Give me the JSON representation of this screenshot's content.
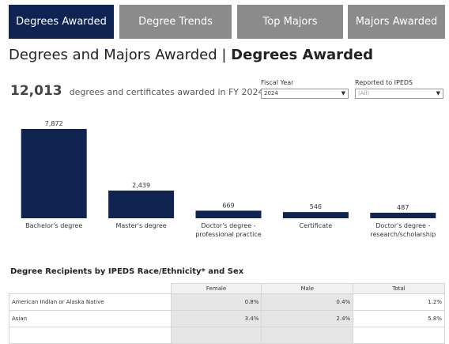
{
  "tabs": [
    {
      "label": "Degrees Awarded",
      "active": true
    },
    {
      "label": "Degree Trends",
      "active": false
    },
    {
      "label": "Top Majors",
      "active": false
    },
    {
      "label": "Majors Awarded",
      "active": false
    }
  ],
  "header": {
    "title_light": "Degrees and Majors Awarded",
    "separator": "|",
    "title_bold": "Degrees Awarded"
  },
  "summary": {
    "total": "12,013",
    "description": "degrees and certificates awarded in FY 2024"
  },
  "filters": {
    "fiscal_year": {
      "label": "Fiscal Year",
      "value": "2024"
    },
    "ipeds": {
      "label": "Reported to IPEDS",
      "value": "(All)"
    }
  },
  "colors": {
    "bar": "#102452",
    "tab_active": "#0f2452",
    "tab_inactive": "#8b8b8b"
  },
  "chart_data": {
    "type": "bar",
    "categories": [
      [
        "Bachelor's degree"
      ],
      [
        "Master's degree"
      ],
      [
        "Doctor's degree -",
        "professional practice"
      ],
      [
        "Certificate"
      ],
      [
        "Doctor's degree -",
        "research/scholarship"
      ]
    ],
    "values": [
      7872,
      2439,
      669,
      546,
      487
    ],
    "data_labels": [
      "7,872",
      "2,439",
      "669",
      "546",
      "487"
    ],
    "ylim": [
      0,
      7872
    ],
    "grid": false
  },
  "table": {
    "title": "Degree Recipients by IPEDS Race/Ethnicity* and Sex",
    "columns": [
      "",
      "Female",
      "Male",
      "Total"
    ],
    "rows": [
      {
        "label": "American Indian or Alaska Native",
        "female": "0.8%",
        "male": "0.4%",
        "total": "1.2%"
      },
      {
        "label": "Asian",
        "female": "3.4%",
        "male": "2.4%",
        "total": "5.8%"
      }
    ]
  }
}
